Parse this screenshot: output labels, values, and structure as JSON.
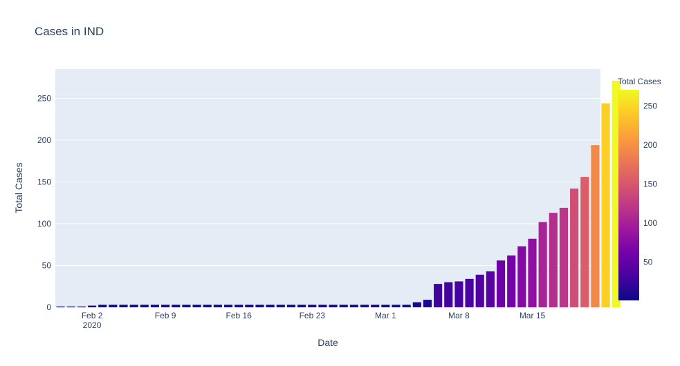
{
  "chart_data": {
    "type": "bar",
    "title": "Cases in IND",
    "xlabel": "Date",
    "ylabel": "Total Cases",
    "x_start": "2020-01-30",
    "x_end": "2020-03-21",
    "x_ticks": [
      {
        "date": "2020-02-02",
        "label": "Feb 2",
        "sublabel": "2020"
      },
      {
        "date": "2020-02-09",
        "label": "Feb 9"
      },
      {
        "date": "2020-02-16",
        "label": "Feb 16"
      },
      {
        "date": "2020-02-23",
        "label": "Feb 23"
      },
      {
        "date": "2020-03-01",
        "label": "Mar 1"
      },
      {
        "date": "2020-03-08",
        "label": "Mar 8"
      },
      {
        "date": "2020-03-15",
        "label": "Mar 15"
      }
    ],
    "ylim": [
      0,
      285
    ],
    "y_ticks": [
      0,
      50,
      100,
      150,
      200,
      250
    ],
    "grid": true,
    "plot_background": "#E5ECF6",
    "values": [
      1,
      1,
      1,
      2,
      3,
      3,
      3,
      3,
      3,
      3,
      3,
      3,
      3,
      3,
      3,
      3,
      3,
      3,
      3,
      3,
      3,
      3,
      3,
      3,
      3,
      3,
      3,
      3,
      3,
      3,
      3,
      3,
      3,
      3,
      6,
      9,
      28,
      30,
      31,
      34,
      39,
      43,
      56,
      62,
      73,
      82,
      102,
      113,
      119,
      142,
      156,
      194,
      244,
      271
    ],
    "colorbar": {
      "title": "Total Cases",
      "range": [
        1,
        271
      ],
      "ticks": [
        50,
        100,
        150,
        200,
        250
      ],
      "colors": [
        "#0d0887",
        "#46039f",
        "#7201a8",
        "#9c179e",
        "#bd3786",
        "#d8576b",
        "#ed7953",
        "#fb9f3a",
        "#fdca26",
        "#f0f921"
      ]
    }
  }
}
